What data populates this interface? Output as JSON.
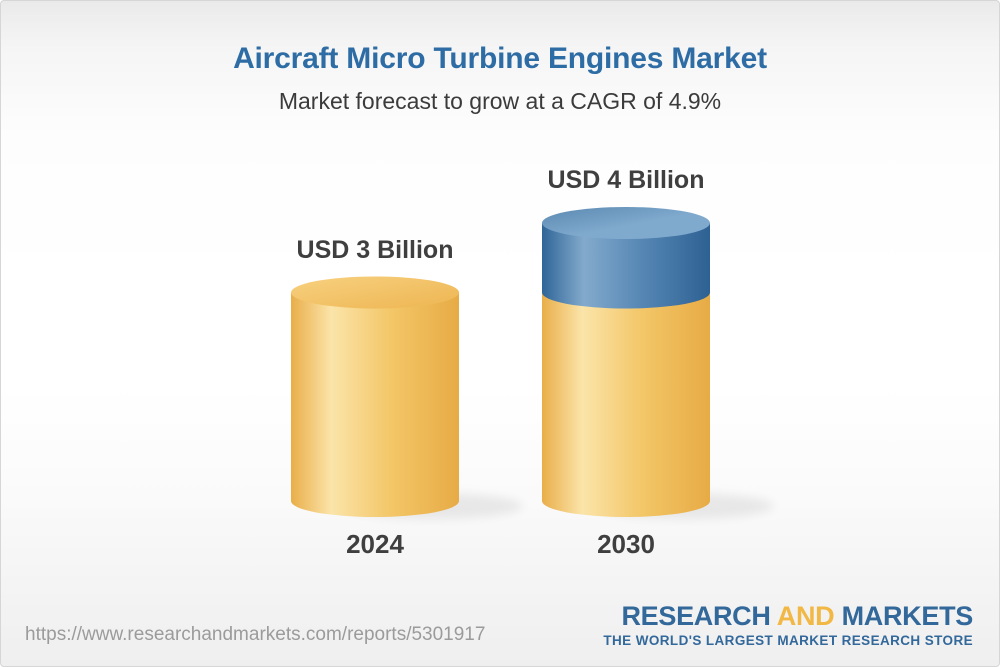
{
  "chart_data": {
    "type": "bar",
    "bar_style": "3d-cylinder",
    "title": "Aircraft Micro Turbine Engines Market",
    "subtitle": "Market forecast to grow at a CAGR of 4.9%",
    "cagr_percent": 4.9,
    "unit": "USD Billion",
    "categories": [
      "2024",
      "2030"
    ],
    "values": [
      3,
      4
    ],
    "value_labels": [
      "USD 3 Billion",
      "USD 4 Billion"
    ],
    "series": [
      {
        "name": "Base market (yellow)",
        "values": [
          3,
          3
        ]
      },
      {
        "name": "Forecast growth (blue)",
        "values": [
          0,
          1
        ]
      }
    ],
    "legend": "none",
    "grid": false,
    "axes": "none",
    "annotation": "2030 cylinder shows yellow base equal to 2024 value with blue growth segment of USD 1 Billion on top"
  },
  "footer": {
    "url": "https://www.researchandmarkets.com/reports/5301917",
    "logo": {
      "word1": "RESEARCH",
      "word2": "AND",
      "word3": "MARKETS",
      "tagline": "THE WORLD'S LARGEST MARKET RESEARCH STORE"
    }
  },
  "colors": {
    "title": "#2D6CA4",
    "subtitle": "#3B3B3B",
    "value_label": "#3F3F3F",
    "year_label": "#3F3F3F",
    "url": "#9B9B9B",
    "logo_blue": "#33689B",
    "logo_gold": "#F1B845",
    "page_border": "#D6D6D6",
    "yellow_dark": "#E9AE49",
    "yellow_light": "#FBE4A9",
    "yellow_mid": "#F3C667",
    "yellow_dark2": "#E7AB45",
    "yellow_top_light": "#F8D180",
    "yellow_top_dark": "#EDB551",
    "blue_dark": "#2F6598",
    "blue_light": "#83AACC",
    "blue_mid": "#5586B4",
    "blue_dark2": "#2E6193",
    "blue_top_light": "#7FA9CD",
    "blue_top_dark": "#5B89B1",
    "shadow": "#000000"
  }
}
